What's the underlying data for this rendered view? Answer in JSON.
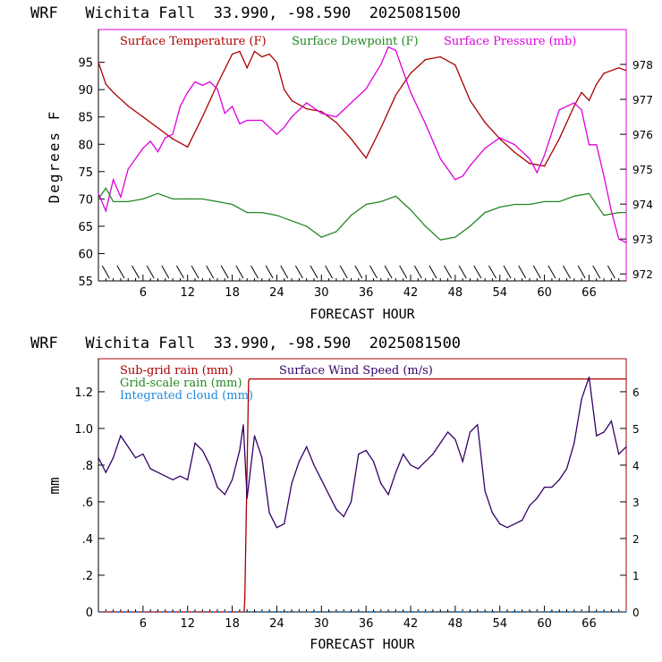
{
  "chart_data": [
    {
      "type": "line",
      "title": "WRF   Wichita Fall  33.990, -98.590  2025081500",
      "xlabel": "FORECAST HOUR",
      "ylabel": "Degrees F",
      "xlim": [
        0,
        71
      ],
      "ylim": [
        55,
        101
      ],
      "y2lim": [
        971.8,
        979
      ],
      "xticks": [
        6,
        12,
        18,
        24,
        30,
        36,
        42,
        48,
        54,
        60,
        66
      ],
      "yticks": [
        55,
        60,
        65,
        70,
        75,
        80,
        85,
        90,
        95
      ],
      "y2ticks": [
        972,
        973,
        974,
        975,
        976,
        977,
        978
      ],
      "series": [
        {
          "name": "Surface Temperature (F)",
          "color": "#aa0000",
          "axis": "left",
          "x": [
            0,
            1,
            2,
            4,
            6,
            8,
            10,
            12,
            14,
            16,
            18,
            19,
            20,
            21,
            22,
            23,
            24,
            25,
            26,
            28,
            30,
            32,
            34,
            36,
            38,
            40,
            42,
            44,
            46,
            48,
            50,
            52,
            54,
            56,
            58,
            60,
            62,
            64,
            65,
            66,
            67,
            68,
            70,
            71
          ],
          "y": [
            95,
            91,
            89.5,
            87,
            85,
            83,
            81,
            79.5,
            85,
            91,
            96.5,
            97,
            94,
            97,
            96,
            96.5,
            95,
            90,
            88,
            86.5,
            86,
            84,
            81,
            77.5,
            83,
            89,
            93,
            95.5,
            96,
            94.5,
            88,
            84,
            81,
            78.5,
            76.5,
            76,
            81,
            87,
            89.5,
            88,
            91,
            93,
            94,
            93.5
          ]
        },
        {
          "name": "Surface Dewpoint (F)",
          "color": "#228822",
          "axis": "left",
          "x": [
            0,
            1,
            2,
            4,
            6,
            8,
            10,
            12,
            14,
            16,
            18,
            20,
            22,
            24,
            26,
            28,
            30,
            32,
            34,
            36,
            38,
            40,
            42,
            44,
            46,
            48,
            50,
            52,
            54,
            56,
            58,
            60,
            62,
            64,
            66,
            67,
            68,
            70,
            71
          ],
          "y": [
            70,
            72,
            69.5,
            69.5,
            70,
            71,
            70,
            70,
            70,
            69.5,
            69,
            67.5,
            67.5,
            67,
            66,
            65,
            63,
            64,
            67,
            69,
            69.5,
            70.5,
            68,
            65,
            62.5,
            63,
            65,
            67.5,
            68.5,
            69,
            69,
            69.5,
            69.5,
            70.5,
            71,
            69,
            67,
            67.5,
            67.5
          ]
        },
        {
          "name": "Surface Pressure (mb)",
          "color": "#dd00dd",
          "axis": "right",
          "x": [
            0,
            1,
            2,
            3,
            4,
            5,
            6,
            7,
            8,
            9,
            10,
            11,
            12,
            13,
            14,
            15,
            16,
            17,
            18,
            19,
            20,
            22,
            24,
            25,
            26,
            28,
            30,
            32,
            34,
            36,
            38,
            39,
            40,
            42,
            44,
            46,
            48,
            49,
            50,
            52,
            54,
            56,
            58,
            59,
            60,
            62,
            64,
            65,
            66,
            67,
            68,
            69,
            70,
            71
          ],
          "y": [
            974.3,
            973.8,
            974.7,
            974.2,
            975,
            975.3,
            975.6,
            975.8,
            975.5,
            975.9,
            976,
            976.8,
            977.2,
            977.5,
            977.4,
            977.5,
            977.3,
            976.6,
            976.8,
            976.3,
            976.4,
            976.4,
            976,
            976.2,
            976.5,
            976.9,
            976.6,
            976.5,
            976.9,
            977.3,
            978,
            978.5,
            978.4,
            977.2,
            976.3,
            975.3,
            974.7,
            974.8,
            975.1,
            975.6,
            975.9,
            975.7,
            975.3,
            974.9,
            975.4,
            976.7,
            976.9,
            976.7,
            975.7,
            975.7,
            974.8,
            973.8,
            973,
            972.9
          ]
        }
      ],
      "legend_position": "top"
    },
    {
      "type": "line",
      "title": "WRF   Wichita Fall  33.990, -98.590  2025081500",
      "xlabel": "FORECAST HOUR",
      "ylabel": "mm",
      "xlim": [
        0,
        71
      ],
      "ylim": [
        0,
        1.38
      ],
      "y2lim": [
        0,
        6.9
      ],
      "xticks": [
        6,
        12,
        18,
        24,
        30,
        36,
        42,
        48,
        54,
        60,
        66
      ],
      "yticks": [
        0,
        0.2,
        0.4,
        0.6,
        0.8,
        1.0,
        1.2
      ],
      "yticklabels": [
        "0",
        ".2",
        ".4",
        ".6",
        ".8",
        "1.0",
        "1.2"
      ],
      "y2ticks": [
        0,
        1,
        2,
        3,
        4,
        5,
        6
      ],
      "series": [
        {
          "name": "Sub-grid rain (mm)",
          "color": "#aa0000",
          "axis": "left",
          "x": [
            0,
            19.6,
            19.7,
            20.2,
            20.3,
            71
          ],
          "y": [
            0,
            0,
            0.08,
            1.26,
            1.27,
            1.27
          ]
        },
        {
          "name": "Grid-scale rain (mm)",
          "color": "#228822",
          "axis": "left",
          "x": [],
          "y": []
        },
        {
          "name": "Integrated cloud (mm)",
          "color": "#2288dd",
          "axis": "left",
          "x": [
            0,
            71
          ],
          "y": [
            0,
            0
          ]
        },
        {
          "name": "Surface Wind Speed (m/s)",
          "color": "#330066",
          "axis": "right",
          "x": [
            0,
            1,
            2,
            3,
            4,
            5,
            6,
            7,
            8,
            9,
            10,
            11,
            12,
            13,
            14,
            15,
            16,
            17,
            18,
            19,
            19.5,
            20,
            21,
            22,
            23,
            24,
            25,
            26,
            27,
            28,
            29,
            30,
            31,
            32,
            33,
            34,
            35,
            36,
            37,
            38,
            39,
            40,
            41,
            42,
            43,
            44,
            45,
            46,
            47,
            48,
            49,
            50,
            51,
            52,
            53,
            54,
            55,
            56,
            57,
            58,
            59,
            60,
            61,
            62,
            63,
            64,
            65,
            66,
            67,
            68,
            69,
            70,
            71
          ],
          "y": [
            4.2,
            3.8,
            4.2,
            4.8,
            4.5,
            4.2,
            4.3,
            3.9,
            3.8,
            3.7,
            3.6,
            3.7,
            3.6,
            4.6,
            4.4,
            4.0,
            3.4,
            3.2,
            3.6,
            4.4,
            5.1,
            3.1,
            4.8,
            4.2,
            2.7,
            2.3,
            2.4,
            3.5,
            4.1,
            4.5,
            4.0,
            3.6,
            3.2,
            2.8,
            2.6,
            3.0,
            4.3,
            4.4,
            4.1,
            3.5,
            3.2,
            3.8,
            4.3,
            4.0,
            3.9,
            4.1,
            4.3,
            4.6,
            4.9,
            4.7,
            4.1,
            4.9,
            5.1,
            3.3,
            2.7,
            2.4,
            2.3,
            2.4,
            2.5,
            2.9,
            3.1,
            3.4,
            3.4,
            3.6,
            3.9,
            4.6,
            5.8,
            6.4,
            4.8,
            4.9,
            5.2,
            4.3,
            4.5
          ]
        }
      ],
      "legend_position": "top-left"
    }
  ]
}
